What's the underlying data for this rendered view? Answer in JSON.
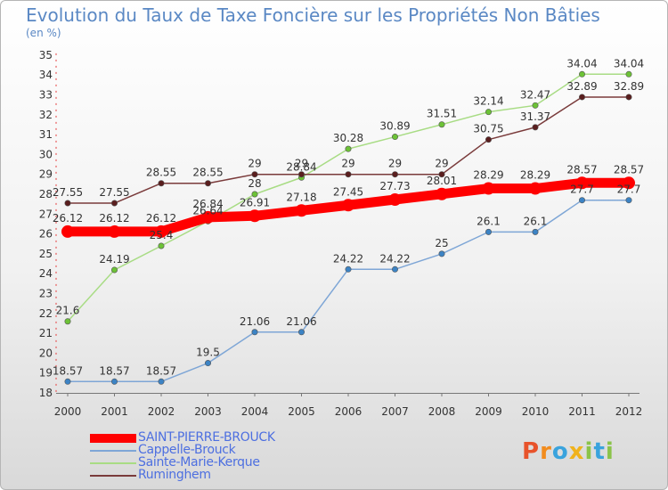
{
  "title": "Evolution du Taux de Taxe Foncière sur les Propriétés Non Bâties",
  "unit": "(en %)",
  "logo": {
    "letters": [
      {
        "ch": "P",
        "color": "#e8532b"
      },
      {
        "ch": "r",
        "color": "#f28c1e"
      },
      {
        "ch": "o",
        "color": "#3aa3dd"
      },
      {
        "ch": "x",
        "color": "#f0b21c"
      },
      {
        "ch": "i",
        "color": "#8bc34a"
      },
      {
        "ch": "t",
        "color": "#3aa3dd"
      },
      {
        "ch": "i",
        "color": "#8bc34a"
      }
    ]
  },
  "chart_data": {
    "type": "line",
    "title": "Evolution du Taux de Taxe Foncière sur les Propriétés Non Bâties",
    "ylabel": "(en %)",
    "x": [
      "2000",
      "2001",
      "2002",
      "2003",
      "2004",
      "2005",
      "2006",
      "2007",
      "2008",
      "2009",
      "2010",
      "2011",
      "2012"
    ],
    "yticks": [
      18,
      19,
      20,
      21,
      22,
      23,
      24,
      25,
      26,
      27,
      28,
      29,
      30,
      31,
      32,
      33,
      34,
      35
    ],
    "ylim": [
      18,
      35
    ],
    "grid": false,
    "legend_position": "bottom-left",
    "series": [
      {
        "name": "SAINT-PIERRE-BROUCK",
        "color": "#ff0000",
        "marker_color": "#ff0000",
        "emphasis": true,
        "values": [
          26.12,
          26.12,
          26.12,
          26.84,
          26.91,
          27.18,
          27.45,
          27.73,
          28.01,
          28.29,
          28.29,
          28.57,
          28.57
        ],
        "labels": [
          "26.12",
          "26.12",
          "26.12",
          "26.84",
          "26.91",
          "27.18",
          "27.45",
          "27.73",
          "28.01",
          "28.29",
          "28.29",
          "28.57",
          "28.57"
        ]
      },
      {
        "name": "Cappelle-Brouck",
        "color": "#7ea6d6",
        "marker_color": "#3c83c4",
        "emphasis": false,
        "values": [
          18.57,
          18.57,
          18.57,
          19.5,
          21.06,
          21.06,
          24.22,
          24.22,
          25,
          26.1,
          26.1,
          27.7,
          27.7
        ],
        "labels": [
          "18.57",
          "18.57",
          "18.57",
          "19.5",
          "21.06",
          "21.06",
          "24.22",
          "24.22",
          "25",
          "26.1",
          "26.1",
          "27.7",
          "27.7"
        ]
      },
      {
        "name": "Sainte-Marie-Kerque",
        "color": "#a8dc84",
        "marker_color": "#6cc236",
        "emphasis": false,
        "values": [
          21.6,
          24.19,
          25.4,
          26.64,
          28,
          28.84,
          30.28,
          30.89,
          31.51,
          32.14,
          32.47,
          34.04,
          34.04
        ],
        "labels": [
          "21.6",
          "24.19",
          "25.4",
          "26.64",
          "28",
          "28.84",
          "30.28",
          "30.89",
          "31.51",
          "32.14",
          "32.47",
          "34.04",
          "34.04"
        ]
      },
      {
        "name": "Ruminghem",
        "color": "#7a3b3b",
        "marker_color": "#5a1e1e",
        "emphasis": false,
        "values": [
          27.55,
          27.55,
          28.55,
          28.55,
          29,
          29,
          29,
          29,
          29,
          30.75,
          31.37,
          32.89,
          32.89
        ],
        "labels": [
          "27.55",
          "27.55",
          "28.55",
          "28.55",
          "29",
          "29",
          "29",
          "29",
          "29",
          "30.75",
          "31.37",
          "32.89",
          "32.89"
        ]
      }
    ]
  }
}
